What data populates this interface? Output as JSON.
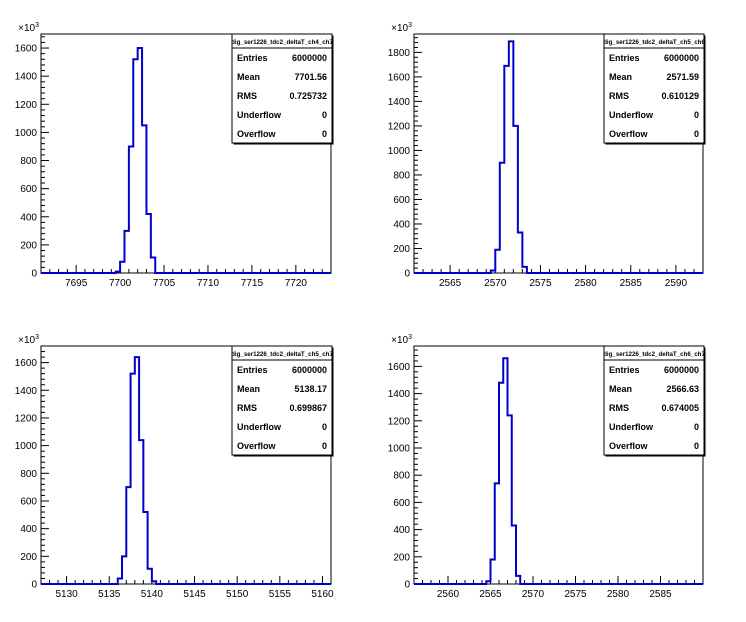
{
  "chart_data": [
    {
      "type": "histogram",
      "title": "dig_ser1226_tdc2_deltaT_ch4_ch7",
      "y_exponent_label": "10^3",
      "xlim": [
        7691,
        7724
      ],
      "ylim": [
        0,
        1700
      ],
      "x_ticks": [
        7695,
        7700,
        7705,
        7710,
        7715,
        7720
      ],
      "y_ticks": [
        0,
        200,
        400,
        600,
        800,
        1000,
        1200,
        1400,
        1600
      ],
      "y_tick_labels": [
        "0",
        "200",
        "400",
        "600",
        "800",
        "1000",
        "1200",
        "1400",
        "1600"
      ],
      "x": [
        7699.5,
        7700.0,
        7700.5,
        7701.0,
        7701.5,
        7702.0,
        7702.5,
        7703.0,
        7703.5
      ],
      "values": [
        10,
        80,
        300,
        900,
        1520,
        1600,
        1050,
        420,
        110
      ],
      "line_color": "#0000cc",
      "stats": {
        "labels": [
          "Entries",
          "Mean",
          "RMS",
          "Underflow",
          "Overflow"
        ],
        "values": [
          "6000000",
          "7701.56",
          "0.725732",
          "0",
          "0"
        ]
      }
    },
    {
      "type": "histogram",
      "title": "dig_ser1226_tdc2_deltaT_ch5_ch6",
      "y_exponent_label": "10^3",
      "xlim": [
        2561,
        2593
      ],
      "ylim": [
        0,
        1950
      ],
      "x_ticks": [
        2565,
        2570,
        2575,
        2580,
        2585,
        2590
      ],
      "y_ticks": [
        0,
        200,
        400,
        600,
        800,
        1000,
        1200,
        1400,
        1600,
        1800
      ],
      "y_tick_labels": [
        "0",
        "200",
        "400",
        "600",
        "800",
        "1000",
        "1200",
        "1400",
        "1600",
        "1800"
      ],
      "x": [
        2569.5,
        2570.0,
        2570.5,
        2571.0,
        2571.5,
        2572.0,
        2572.5,
        2573.0
      ],
      "values": [
        20,
        190,
        900,
        1690,
        1890,
        1200,
        330,
        50
      ],
      "line_color": "#0000cc",
      "stats": {
        "labels": [
          "Entries",
          "Mean",
          "RMS",
          "Underflow",
          "Overflow"
        ],
        "values": [
          "6000000",
          "2571.59",
          "0.610129",
          "0",
          "0"
        ]
      }
    },
    {
      "type": "histogram",
      "title": "dig_ser1226_tdc2_deltaT_ch5_ch7",
      "y_exponent_label": "10^3",
      "xlim": [
        5127,
        5161
      ],
      "ylim": [
        0,
        1720
      ],
      "x_ticks": [
        5130,
        5135,
        5140,
        5145,
        5150,
        5155,
        5160
      ],
      "y_ticks": [
        0,
        200,
        400,
        600,
        800,
        1000,
        1200,
        1400,
        1600
      ],
      "y_tick_labels": [
        "0",
        "200",
        "400",
        "600",
        "800",
        "1000",
        "1200",
        "1400",
        "1600"
      ],
      "x": [
        5136.0,
        5136.5,
        5137.0,
        5137.5,
        5138.0,
        5138.5,
        5139.0,
        5139.5,
        5140.0
      ],
      "values": [
        40,
        200,
        700,
        1520,
        1640,
        1040,
        520,
        110,
        20
      ],
      "line_color": "#0000cc",
      "stats": {
        "labels": [
          "Entries",
          "Mean",
          "RMS",
          "Underflow",
          "Overflow"
        ],
        "values": [
          "6000000",
          "5138.17",
          "0.699867",
          "0",
          "0"
        ]
      }
    },
    {
      "type": "histogram",
      "title": "dig_ser1226_tdc2_deltaT_ch6_ch7",
      "y_exponent_label": "10^3",
      "xlim": [
        2556,
        2590
      ],
      "ylim": [
        0,
        1750
      ],
      "x_ticks": [
        2560,
        2565,
        2570,
        2575,
        2580,
        2585
      ],
      "y_ticks": [
        0,
        200,
        400,
        600,
        800,
        1000,
        1200,
        1400,
        1600
      ],
      "y_tick_labels": [
        "0",
        "200",
        "400",
        "600",
        "800",
        "1000",
        "1200",
        "1400",
        "1600"
      ],
      "x": [
        2564.5,
        2565.0,
        2565.5,
        2566.0,
        2566.5,
        2567.0,
        2567.5,
        2568.0
      ],
      "values": [
        20,
        180,
        740,
        1480,
        1660,
        1240,
        430,
        60
      ],
      "line_color": "#0000cc",
      "stats": {
        "labels": [
          "Entries",
          "Mean",
          "RMS",
          "Underflow",
          "Overflow"
        ],
        "values": [
          "6000000",
          "2566.63",
          "0.674005",
          "0",
          "0"
        ]
      }
    }
  ]
}
